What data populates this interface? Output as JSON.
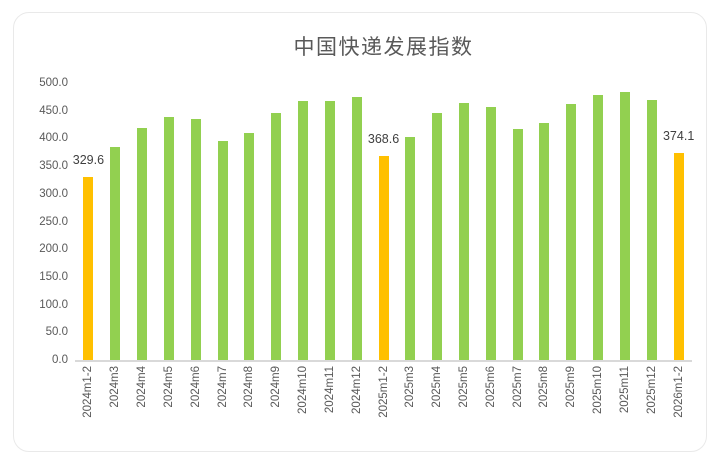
{
  "colors": {
    "bar_default": "#92D050",
    "bar_highlight": "#FFC000",
    "axis_text": "#595959",
    "data_label_text": "#3f3f3f",
    "axis_line": "#d9d9d9",
    "frame_border": "#e9e9e9",
    "background": "#ffffff"
  },
  "chart_data": {
    "type": "bar",
    "title": "中国快递发展指数",
    "xlabel": "",
    "ylabel": "",
    "ylim": [
      0,
      500
    ],
    "grid": false,
    "legend": false,
    "y_tick_labels": [
      "500.0",
      "450.0",
      "400.0",
      "350.0",
      "300.0",
      "250.0",
      "200.0",
      "150.0",
      "100.0",
      "50.0",
      "0.0"
    ],
    "categories": [
      "2024m1-2",
      "2024m3",
      "2024m4",
      "2024m5",
      "2024m6",
      "2024m7",
      "2024m8",
      "2024m9",
      "2024m10",
      "2024m11",
      "2024m12",
      "2025m1-2",
      "2025m3",
      "2025m4",
      "2025m5",
      "2025m6",
      "2025m7",
      "2025m8",
      "2025m9",
      "2025m10",
      "2025m11",
      "2025m12",
      "2026m1-2"
    ],
    "values": [
      329.6,
      384,
      418,
      438,
      435,
      396,
      410,
      446,
      468,
      467,
      474,
      368.6,
      403,
      446,
      463,
      457,
      417,
      427,
      462,
      479,
      484,
      470,
      374.1
    ],
    "highlighted_indices": [
      0,
      11,
      22
    ],
    "data_labels": {
      "0": "329.6",
      "11": "368.6",
      "22": "374.1"
    }
  }
}
